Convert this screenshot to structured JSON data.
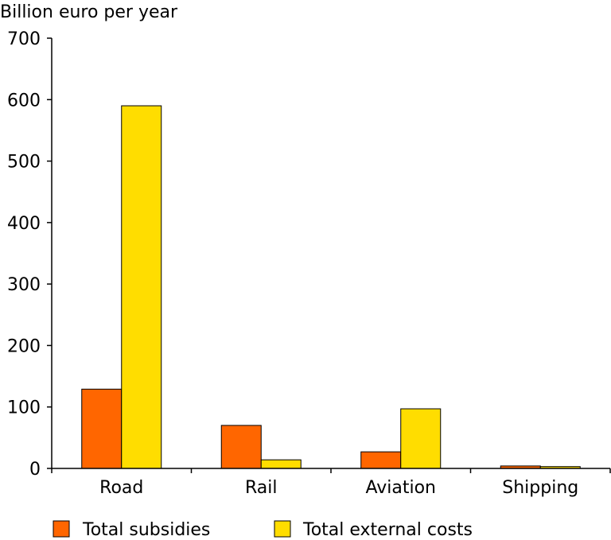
{
  "chart_data": {
    "type": "bar",
    "ylabel": "Billion euro per year",
    "categories": [
      "Road",
      "Rail",
      "Aviation",
      "Shipping"
    ],
    "series": [
      {
        "name": "Total subsidies",
        "values": [
          129,
          70,
          27,
          4
        ],
        "color": "#ff6600"
      },
      {
        "name": "Total external costs",
        "values": [
          590,
          14,
          97,
          3
        ],
        "color": "#ffdd00"
      }
    ],
    "ylim": [
      0,
      700
    ],
    "yticks": [
      0,
      100,
      200,
      300,
      400,
      500,
      600,
      700
    ],
    "grid": false,
    "legend_position": "bottom"
  }
}
